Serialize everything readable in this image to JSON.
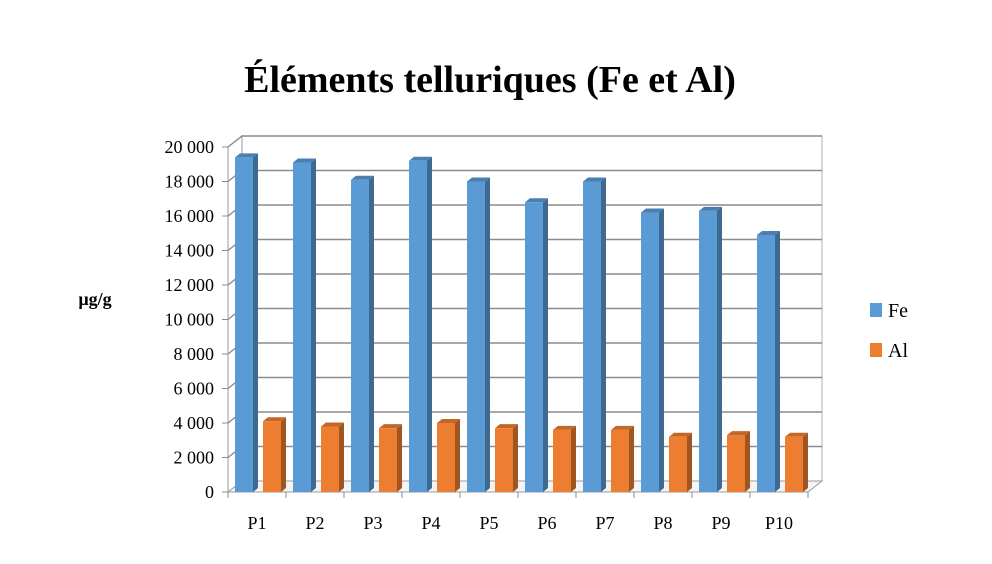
{
  "chart_data": {
    "type": "bar",
    "title": "Éléments telluriques (Fe et Al)",
    "xlabel": "",
    "ylabel": "µg/g",
    "categories": [
      "P1",
      "P2",
      "P3",
      "P4",
      "P5",
      "P6",
      "P7",
      "P8",
      "P9",
      "P10"
    ],
    "series": [
      {
        "name": "Fe",
        "color": "#5B9BD5",
        "values": [
          19400,
          19100,
          18100,
          19200,
          18000,
          16800,
          18000,
          16200,
          16300,
          14900
        ]
      },
      {
        "name": "Al",
        "color": "#ED7D31",
        "values": [
          4100,
          3800,
          3700,
          4000,
          3700,
          3600,
          3600,
          3200,
          3300,
          3200
        ]
      }
    ],
    "ylim": [
      0,
      20000
    ],
    "ytick_labels": [
      "0",
      "2 000",
      "4 000",
      "6 000",
      "8 000",
      "10 000",
      "12 000",
      "14 000",
      "16 000",
      "18 000",
      "20 000"
    ],
    "grid": true,
    "legend_position": "right"
  }
}
